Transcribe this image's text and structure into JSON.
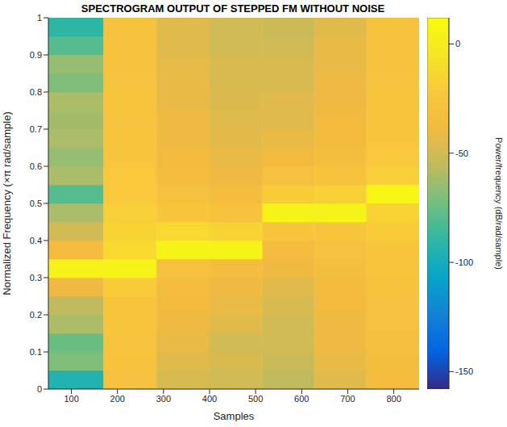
{
  "chart_data": {
    "type": "heatmap",
    "title": "SPECTROGRAM OUTPUT OF STEPPED FM WITHOUT NOISE",
    "x_label": "Samples",
    "y_label": "Normalized Frequency  (×π rad/sample)",
    "xlim": [
      50,
      855
    ],
    "xticks": [
      100,
      200,
      300,
      400,
      500,
      600,
      700,
      800
    ],
    "ylim": [
      0,
      1
    ],
    "yticks": [
      0,
      0.1,
      0.2,
      0.3,
      0.4,
      0.5,
      0.6,
      0.7,
      0.8,
      0.9,
      1
    ],
    "x_bins": [
      50,
      170,
      285,
      400,
      515,
      628,
      741,
      855
    ],
    "y_bins": [
      0,
      0.05,
      0.1,
      0.15,
      0.2,
      0.25,
      0.3,
      0.35,
      0.4,
      0.45,
      0.5,
      0.55,
      0.6,
      0.65,
      0.7,
      0.75,
      0.8,
      0.85,
      0.9,
      0.95,
      1
    ],
    "power_db": [
      [
        -95,
        -70,
        -75,
        -60,
        -55,
        -40,
        5,
        -35,
        -50,
        -60,
        -80,
        -60,
        -65,
        -60,
        -62,
        -60,
        -70,
        -65,
        -80,
        -90
      ],
      [
        -30,
        -28,
        -27,
        -26,
        -25,
        -20,
        5,
        -12,
        -15,
        -18,
        -22,
        -22,
        -24,
        -25,
        -26,
        -26,
        -27,
        -28,
        -28,
        -30
      ],
      [
        -48,
        -45,
        -42,
        -40,
        -38,
        -35,
        -30,
        5,
        -12,
        -25,
        -30,
        -35,
        -38,
        -40,
        -40,
        -42,
        -42,
        -43,
        -45,
        -45
      ],
      [
        -50,
        -48,
        -50,
        -45,
        -42,
        -40,
        -35,
        5,
        -15,
        -28,
        -35,
        -40,
        -42,
        -44,
        -45,
        -46,
        -48,
        -48,
        -50,
        -50
      ],
      [
        -55,
        -52,
        -50,
        -50,
        -48,
        -45,
        -40,
        -35,
        -25,
        5,
        -20,
        -30,
        -38,
        -42,
        -45,
        -45,
        -48,
        -48,
        -50,
        -52
      ],
      [
        -45,
        -42,
        -40,
        -40,
        -38,
        -36,
        -34,
        -30,
        -25,
        5,
        -18,
        -28,
        -34,
        -36,
        -38,
        -40,
        -40,
        -42,
        -42,
        -45
      ],
      [
        -35,
        -33,
        -32,
        -30,
        -30,
        -28,
        -27,
        -25,
        -20,
        -15,
        8,
        -18,
        -22,
        -24,
        -25,
        -26,
        -27,
        -28,
        -28,
        -30
      ]
    ],
    "colorbar_label": "Power/frequency (dB/rad/sample)",
    "colorbar_lim": [
      -158,
      12
    ],
    "colorbar_ticks": [
      -150,
      -100,
      -50,
      0
    ]
  }
}
